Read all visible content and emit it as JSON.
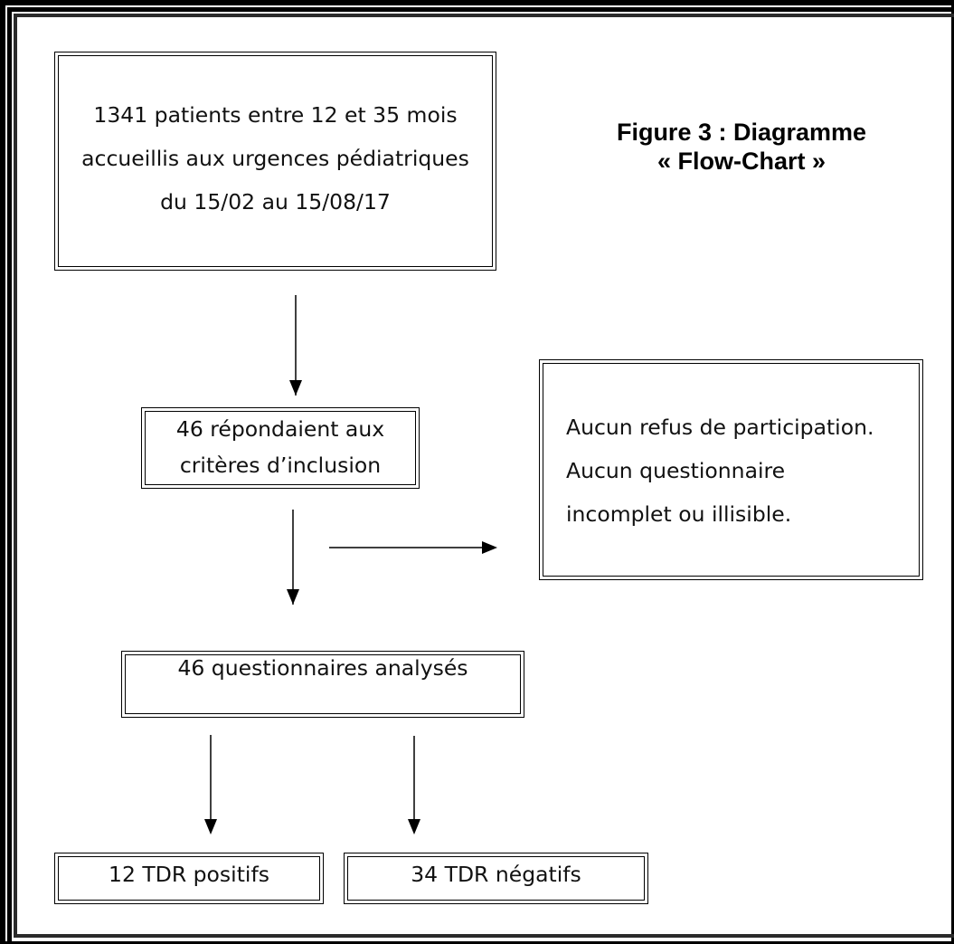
{
  "figure": {
    "title_line1": "Figure 3 : Diagramme",
    "title_line2": "« Flow-Chart »"
  },
  "boxes": {
    "patients": {
      "line1": "1341 patients entre 12 et 35 mois",
      "line2": "accueillis aux urgences pédiatriques",
      "line3": "du 15/02 au 15/08/17"
    },
    "inclusion": {
      "line1": "46 répondaient aux",
      "line2": "critères d’inclusion"
    },
    "exclusion": {
      "line1": "Aucun refus de participation.",
      "line2": "Aucun questionnaire",
      "line3": "incomplet ou illisible."
    },
    "analysed": {
      "line1": "46 questionnaires analysés"
    },
    "positive": {
      "line1": "12 TDR positifs"
    },
    "negative": {
      "line1": "34 TDR négatifs"
    }
  }
}
